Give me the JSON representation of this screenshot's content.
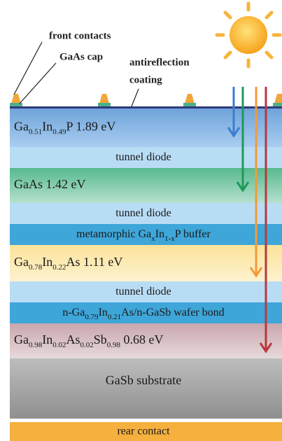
{
  "callouts": {
    "front_contacts": "front contacts",
    "gaas_cap": "GaAs cap",
    "antireflection": "antireflection",
    "coating": "coating"
  },
  "layers": [
    {
      "parts": [
        {
          "text": "Ga",
          "sub": "0.51"
        },
        {
          "text": "In",
          "sub": "0.49"
        },
        {
          "text": "P 1.89 eV"
        }
      ]
    },
    {
      "parts": [
        {
          "text": "tunnel diode"
        }
      ]
    },
    {
      "parts": [
        {
          "text": "GaAs 1.42 eV"
        }
      ]
    },
    {
      "parts": [
        {
          "text": "tunnel diode"
        }
      ]
    },
    {
      "parts": [
        {
          "text": "metamorphic Ga",
          "sub": "x"
        },
        {
          "text": "In",
          "sub": "1-x"
        },
        {
          "text": "P buffer"
        }
      ]
    },
    {
      "parts": [
        {
          "text": "Ga",
          "sub": "0.78"
        },
        {
          "text": "In",
          "sub": "0.22"
        },
        {
          "text": "As 1.11 eV"
        }
      ]
    },
    {
      "parts": [
        {
          "text": "tunnel diode"
        }
      ]
    },
    {
      "parts": [
        {
          "text": "n-Ga",
          "sub": "0.79"
        },
        {
          "text": "In",
          "sub": "0.21"
        },
        {
          "text": "As/n-GaSb wafer bond"
        }
      ]
    },
    {
      "parts": [
        {
          "text": "Ga",
          "sub": "0.98"
        },
        {
          "text": "In",
          "sub": "0.02"
        },
        {
          "text": "As",
          "sub": "0.02"
        },
        {
          "text": "Sb",
          "sub": "0.98"
        },
        {
          "text": " 0.68 eV"
        }
      ]
    },
    {
      "parts": [
        {
          "text": "GaSb substrate"
        }
      ]
    },
    {
      "parts": [
        {
          "text": "rear contact"
        }
      ]
    }
  ]
}
